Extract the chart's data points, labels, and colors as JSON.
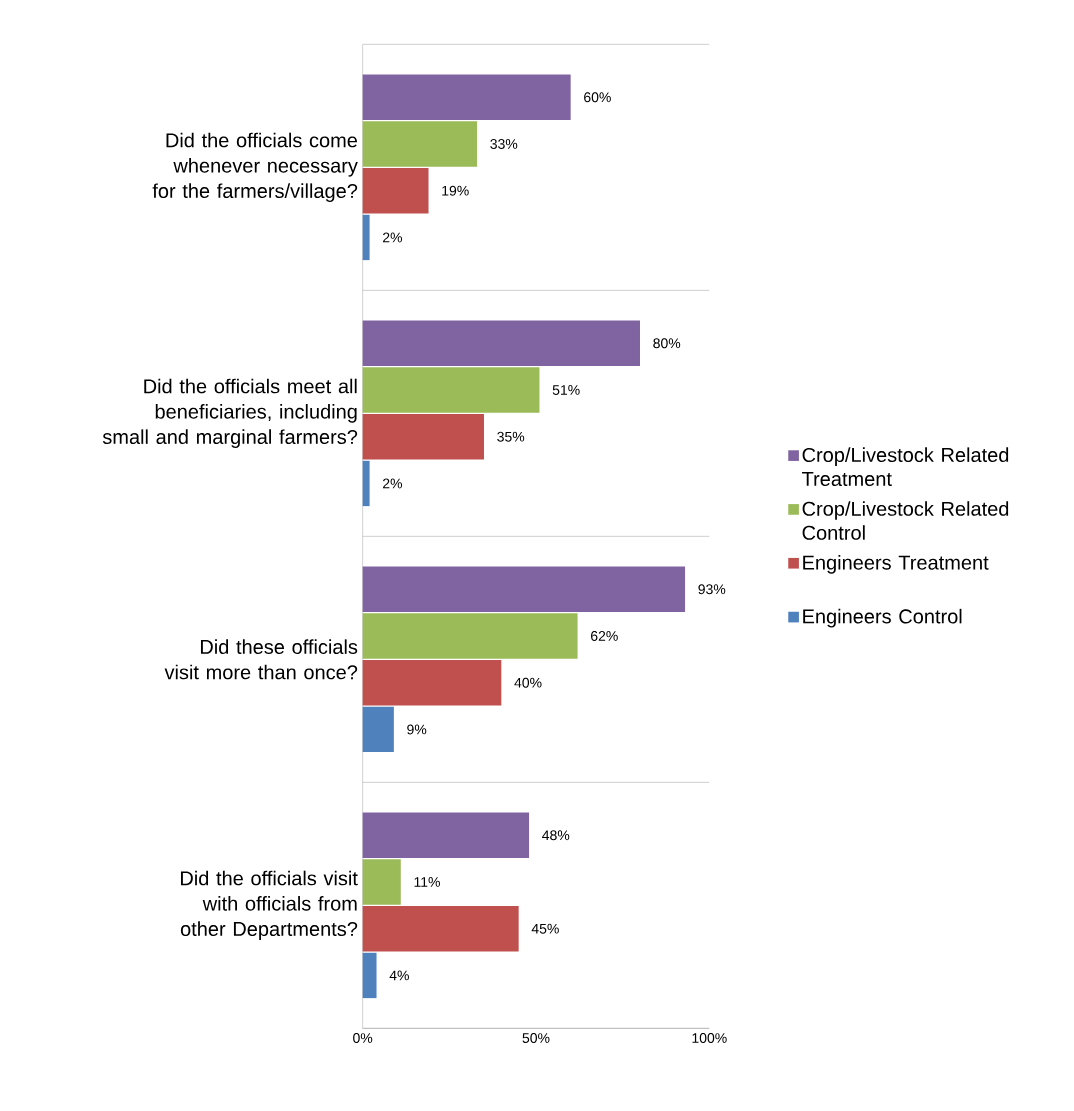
{
  "chart_data": {
    "type": "bar",
    "orientation": "horizontal",
    "categories": [
      "Did the officials come whenever necessary for the farmers/village?",
      "Did the officials meet all beneficiaries, including small and marginal farmers?",
      "Did these officials visit more than once?",
      "Did the officials visit with officials from other Departments?"
    ],
    "series": [
      {
        "name": "Crop/Livestock Related Treatment",
        "color": "#8064a2",
        "values": [
          60,
          80,
          93,
          48
        ],
        "value_labels": [
          "60%",
          "80%",
          "93%",
          "48%"
        ]
      },
      {
        "name": "Crop/Livestock Related Control",
        "color": "#9bbb59",
        "values": [
          33,
          51,
          62,
          11
        ],
        "value_labels": [
          "33%",
          "51%",
          "62%",
          "11%"
        ]
      },
      {
        "name": "Engineers Treatment",
        "color": "#c0504d",
        "values": [
          19,
          35,
          40,
          45
        ],
        "value_labels": [
          "19%",
          "35%",
          "40%",
          "45%"
        ]
      },
      {
        "name": "Engineers Control",
        "color": "#4f81bd",
        "values": [
          2,
          2,
          9,
          4
        ],
        "value_labels": [
          "2%",
          "2%",
          "9%",
          "4%"
        ]
      }
    ],
    "xlim": [
      0,
      100
    ],
    "xticks": [
      {
        "value": 0,
        "label": "0%"
      },
      {
        "value": 50,
        "label": "50%"
      },
      {
        "value": 100,
        "label": "100%"
      }
    ],
    "grid": "y",
    "legend": "right"
  }
}
